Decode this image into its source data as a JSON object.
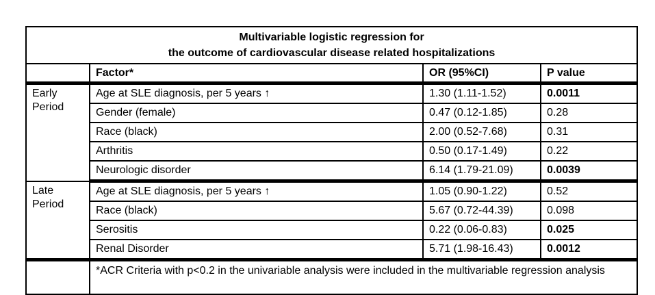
{
  "table": {
    "title_line1": "Multivariable logistic regression for",
    "title_line2": "the outcome of cardiovascular disease related hospitalizations",
    "columns": {
      "period": "",
      "factor": "Factor*",
      "or": "OR (95%CI)",
      "p": "P value"
    },
    "sections": [
      {
        "period": "Early Period",
        "rows": [
          {
            "factor": "Age at SLE diagnosis, per 5 years ↑",
            "or": "1.30 (1.11-1.52)",
            "p": "0.0011"
          },
          {
            "factor": "Gender (female)",
            "or": "0.47 (0.12-1.85)",
            "p": "0.28"
          },
          {
            "factor": "Race (black)",
            "or": "2.00 (0.52-7.68)",
            "p": "0.31"
          },
          {
            "factor": "Arthritis",
            "or": "0.50 (0.17-1.49)",
            "p": "0.22"
          },
          {
            "factor": "Neurologic disorder",
            "or": "6.14 (1.79-21.09)",
            "p": "0.0039"
          }
        ]
      },
      {
        "period": "Late Period",
        "rows": [
          {
            "factor": "Age at SLE diagnosis, per 5 years ↑",
            "or": "1.05 (0.90-1.22)",
            "p": "0.52"
          },
          {
            "factor": "Race (black)",
            "or": "5.67 (0.72-44.39)",
            "p": "0.098"
          },
          {
            "factor": "Serositis",
            "or": "0.22 (0.06-0.83)",
            "p": "0.025"
          },
          {
            "factor": "Renal Disorder",
            "or": "5.71 (1.98-16.43)",
            "p": "0.0012"
          }
        ]
      }
    ],
    "footnote": "*ACR Criteria with p<0.2 in the univariable analysis were included in the multivariable regression analysis",
    "colors": {
      "text": "#000000",
      "border": "#000000",
      "background": "#ffffff"
    }
  },
  "chart_data": {
    "type": "table",
    "title": "Multivariable logistic regression for the outcome of cardiovascular disease related hospitalizations",
    "columns": [
      "Period",
      "Factor*",
      "OR (95%CI)",
      "P value"
    ],
    "rows": [
      [
        "Early Period",
        "Age at SLE diagnosis, per 5 years ↑",
        "1.30 (1.11-1.52)",
        "0.0011"
      ],
      [
        "Early Period",
        "Gender (female)",
        "0.47 (0.12-1.85)",
        "0.28"
      ],
      [
        "Early Period",
        "Race (black)",
        "2.00 (0.52-7.68)",
        "0.31"
      ],
      [
        "Early Period",
        "Arthritis",
        "0.50 (0.17-1.49)",
        "0.22"
      ],
      [
        "Early Period",
        "Neurologic disorder",
        "6.14 (1.79-21.09)",
        "0.0039"
      ],
      [
        "Late Period",
        "Age at SLE diagnosis, per 5 years ↑",
        "1.05 (0.90-1.22)",
        "0.52"
      ],
      [
        "Late Period",
        "Race (black)",
        "5.67 (0.72-44.39)",
        "0.098"
      ],
      [
        "Late Period",
        "Serositis",
        "0.22 (0.06-0.83)",
        "0.025"
      ],
      [
        "Late Period",
        "Renal Disorder",
        "5.71 (1.98-16.43)",
        "0.0012"
      ]
    ],
    "bold_p_values": [
      "0.0011",
      "0.0039",
      "0.025",
      "0.0012"
    ],
    "footnote": "*ACR Criteria with p<0.2 in the univariable analysis were included in the multivariable regression analysis"
  }
}
